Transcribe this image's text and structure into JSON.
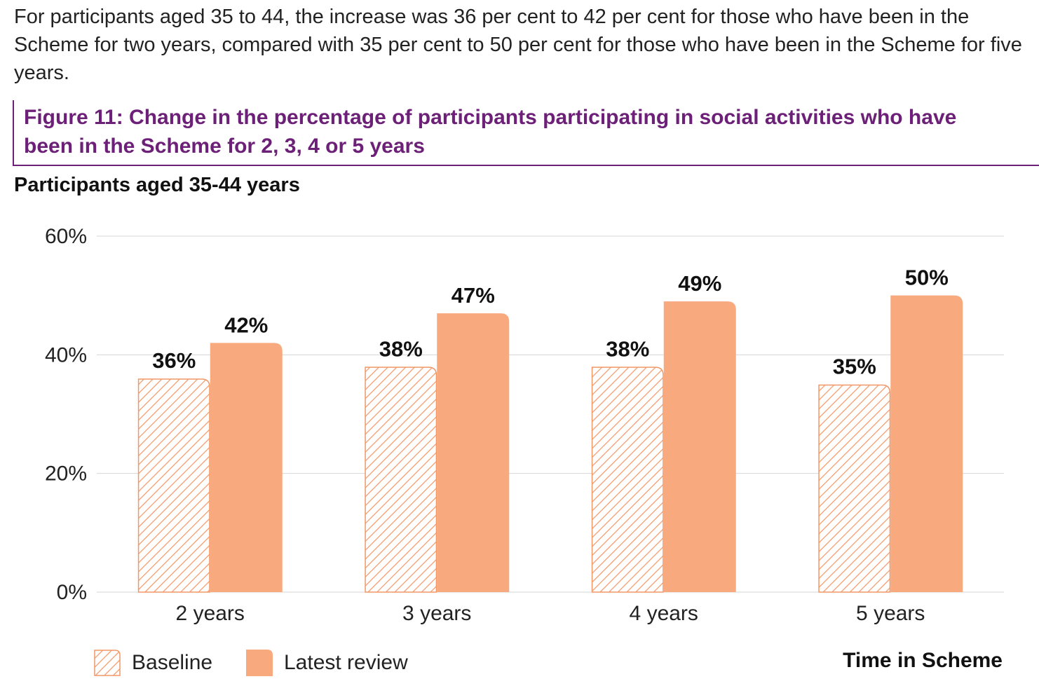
{
  "intro_text": "For participants aged 35 to 44, the increase was 36 per cent to 42 per cent for those who have been in the Scheme for two years, compared with 35 per cent to 50 per cent for those who have been in the Scheme for five years.",
  "figure_title": "Figure 11: Change in the percentage of participants participating in social activities who have been in the Scheme for 2, 3, 4 or 5 years",
  "colors": {
    "accent": "#6d2077",
    "bar": "#f8aa7e",
    "hatch": "#f29766"
  },
  "chart_data": {
    "type": "bar",
    "title": "Participants aged 35-44 years",
    "xlabel": "Time in Scheme",
    "ylabel": "",
    "categories": [
      "2 years",
      "3 years",
      "4 years",
      "5 years"
    ],
    "series": [
      {
        "name": "Baseline",
        "values": [
          36,
          38,
          38,
          35
        ],
        "labels": [
          "36%",
          "38%",
          "38%",
          "35%"
        ],
        "style": "hatched"
      },
      {
        "name": "Latest review",
        "values": [
          42,
          47,
          49,
          50
        ],
        "labels": [
          "42%",
          "47%",
          "49%",
          "50%"
        ],
        "style": "solid"
      }
    ],
    "ylim": [
      0,
      60
    ],
    "yticks": [
      0,
      20,
      40,
      60
    ],
    "ytick_labels": [
      "0%",
      "20%",
      "40%",
      "60%"
    ],
    "grid": true,
    "legend": "bottom-left"
  }
}
